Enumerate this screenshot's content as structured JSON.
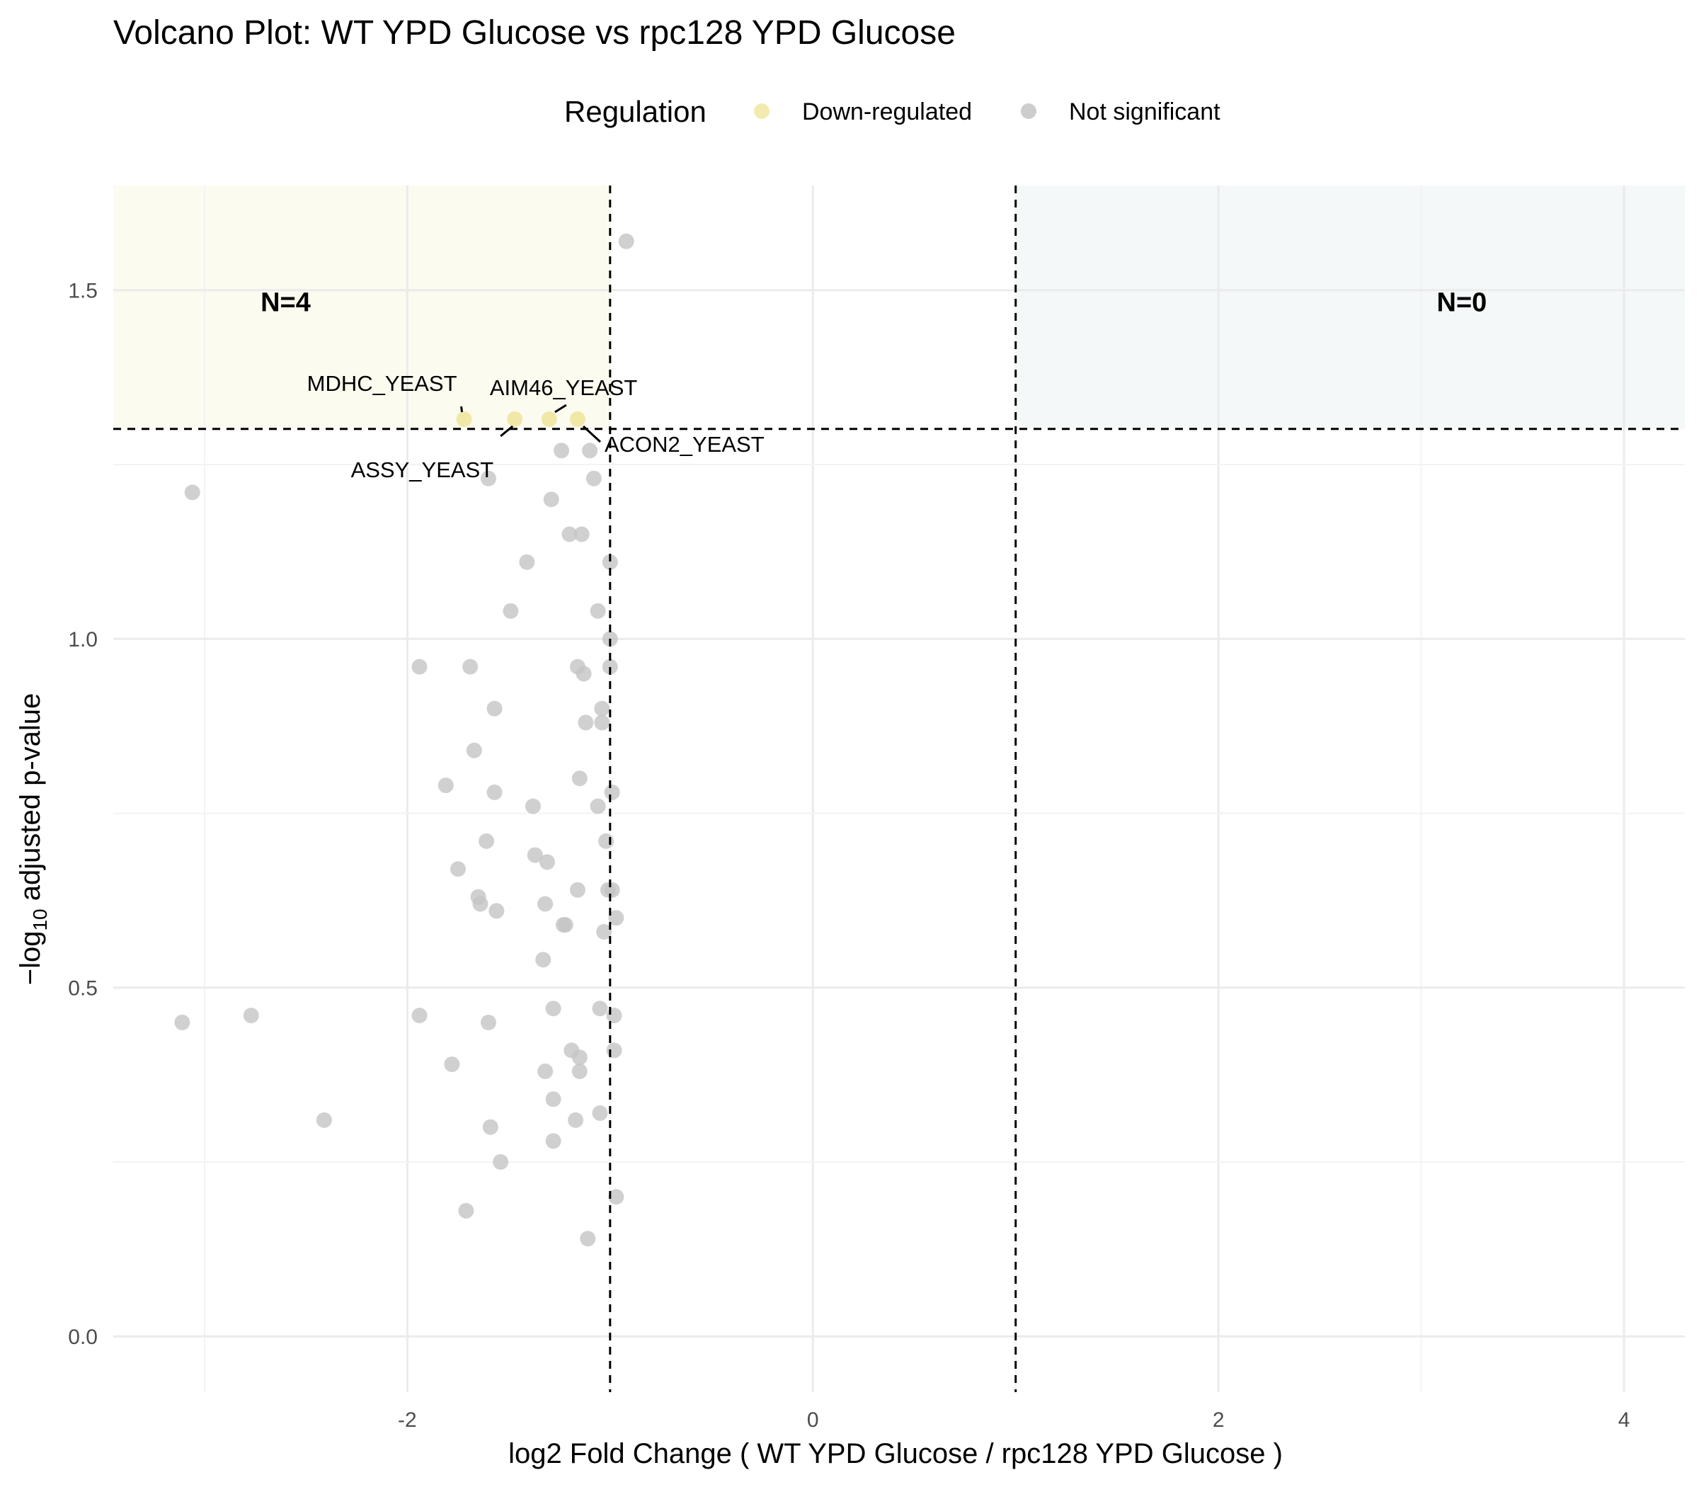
{
  "chart_data": {
    "type": "scatter",
    "title": "Volcano Plot: WT YPD Glucose vs rpc128 YPD Glucose",
    "xlabel": "log2 Fold Change ( WT YPD Glucose / rpc128 YPD Glucose )",
    "ylabel_prefix": "−log",
    "ylabel_sub": "10",
    "ylabel_suffix": " adjusted p-value",
    "xlim": [
      -3.45,
      4.3
    ],
    "ylim": [
      -0.08,
      1.65
    ],
    "x_ticks": [
      -2,
      0,
      2,
      4
    ],
    "x_tick_labels": [
      "-2",
      "0",
      "2",
      "4"
    ],
    "y_ticks": [
      0.0,
      0.5,
      1.0,
      1.5
    ],
    "y_tick_labels": [
      "0.0",
      "0.5",
      "1.0",
      "1.5"
    ],
    "grid": true,
    "fc_threshold": 1,
    "pval_threshold_y": 1.301,
    "legend": {
      "title": "Regulation",
      "position": "top",
      "entries": [
        {
          "label": "Down-regulated",
          "color": "#f0e6a0"
        },
        {
          "label": "Not significant",
          "color": "#c4c4c4"
        }
      ]
    },
    "region_counts": [
      {
        "label": "N=4",
        "x": -2.6,
        "y": 1.47
      },
      {
        "label": "N=0",
        "x": 3.2,
        "y": 1.47
      }
    ],
    "colors": {
      "down_fill": "#f0e6a0",
      "ns_fill": "#c4c4c4",
      "down_region": "#fbfbf0",
      "up_region": "#f5f8f8"
    },
    "labeled_points": [
      {
        "name": "MDHC_YEAST",
        "x": -1.72,
        "y": 1.315
      },
      {
        "name": "ASSY_YEAST",
        "x": -1.47,
        "y": 1.315
      },
      {
        "name": "AIM46_YEAST",
        "x": -1.3,
        "y": 1.315
      },
      {
        "name": "ACON2_YEAST",
        "x": -1.16,
        "y": 1.315
      }
    ],
    "series": [
      {
        "name": "Down-regulated",
        "points": [
          [
            -1.72,
            1.315
          ],
          [
            -1.47,
            1.315
          ],
          [
            -1.3,
            1.315
          ],
          [
            -1.16,
            1.315
          ]
        ]
      },
      {
        "name": "Not significant",
        "points": [
          [
            -0.92,
            1.57
          ],
          [
            -3.06,
            1.21
          ],
          [
            -3.11,
            0.45
          ],
          [
            -2.77,
            0.46
          ],
          [
            -2.41,
            0.31
          ],
          [
            -1.94,
            0.96
          ],
          [
            -1.94,
            0.46
          ],
          [
            -1.81,
            0.79
          ],
          [
            -1.78,
            0.39
          ],
          [
            -1.71,
            0.18
          ],
          [
            -1.69,
            0.96
          ],
          [
            -1.67,
            0.84
          ],
          [
            -1.75,
            0.67
          ],
          [
            -1.65,
            0.63
          ],
          [
            -1.64,
            0.62
          ],
          [
            -1.61,
            0.71
          ],
          [
            -1.6,
            0.45
          ],
          [
            -1.59,
            0.3
          ],
          [
            -1.57,
            0.9
          ],
          [
            -1.57,
            0.78
          ],
          [
            -1.56,
            0.61
          ],
          [
            -1.6,
            1.23
          ],
          [
            -1.54,
            0.25
          ],
          [
            -1.49,
            1.04
          ],
          [
            -1.41,
            1.11
          ],
          [
            -1.38,
            0.76
          ],
          [
            -1.37,
            0.69
          ],
          [
            -1.33,
            0.54
          ],
          [
            -1.32,
            0.62
          ],
          [
            -1.32,
            0.38
          ],
          [
            -1.31,
            0.68
          ],
          [
            -1.29,
            1.2
          ],
          [
            -1.28,
            0.47
          ],
          [
            -1.28,
            0.34
          ],
          [
            -1.28,
            0.28
          ],
          [
            -1.23,
            0.59
          ],
          [
            -1.22,
            0.59
          ],
          [
            -1.24,
            1.27
          ],
          [
            -1.2,
            1.15
          ],
          [
            -1.19,
            0.41
          ],
          [
            -1.17,
            0.31
          ],
          [
            -1.16,
            0.64
          ],
          [
            -1.15,
            0.4
          ],
          [
            -1.14,
            1.15
          ],
          [
            -1.16,
            0.96
          ],
          [
            -1.13,
            0.95
          ],
          [
            -1.15,
            0.8
          ],
          [
            -1.15,
            0.38
          ],
          [
            -1.12,
            0.88
          ],
          [
            -1.11,
            0.14
          ],
          [
            -1.1,
            1.27
          ],
          [
            -1.08,
            1.23
          ],
          [
            -1.06,
            1.04
          ],
          [
            -1.06,
            0.76
          ],
          [
            -1.05,
            0.47
          ],
          [
            -1.05,
            0.32
          ],
          [
            -1.04,
            0.9
          ],
          [
            -1.04,
            0.88
          ],
          [
            -1.03,
            0.58
          ],
          [
            -1.02,
            0.71
          ],
          [
            -1.01,
            0.64
          ],
          [
            -1.0,
            0.96
          ],
          [
            -1.0,
            1.0
          ],
          [
            -1.0,
            1.11
          ],
          [
            -0.99,
            0.78
          ],
          [
            -0.99,
            0.64
          ],
          [
            -0.98,
            0.46
          ],
          [
            -0.98,
            0.41
          ],
          [
            -0.97,
            0.2
          ],
          [
            -0.97,
            0.6
          ]
        ]
      }
    ]
  }
}
